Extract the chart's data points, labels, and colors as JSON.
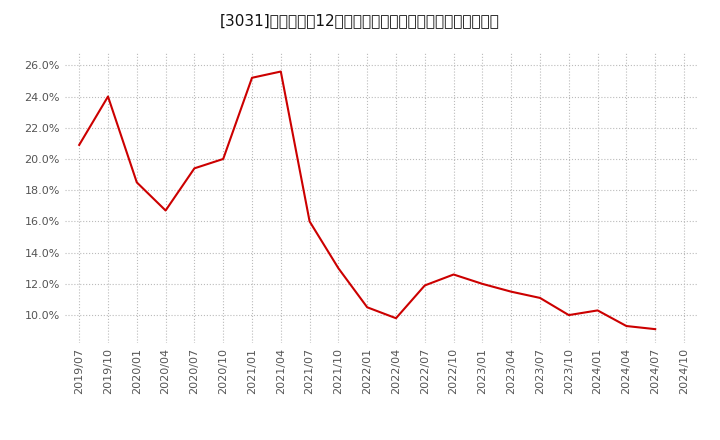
{
  "title": "[3031]　売上高の12か月移動合計の対前年同期増減率の推移",
  "line_color": "#cc0000",
  "background_color": "#ffffff",
  "plot_bg_color": "#ffffff",
  "grid_color": "#bbbbbb",
  "ylim": [
    0.082,
    0.268
  ],
  "yticks": [
    0.1,
    0.12,
    0.14,
    0.16,
    0.18,
    0.2,
    0.22,
    0.24,
    0.26
  ],
  "dates": [
    "2019/07",
    "2019/10",
    "2020/01",
    "2020/04",
    "2020/07",
    "2020/10",
    "2021/01",
    "2021/04",
    "2021/07",
    "2021/10",
    "2022/01",
    "2022/04",
    "2022/07",
    "2022/10",
    "2023/01",
    "2023/04",
    "2023/07",
    "2023/10",
    "2024/01",
    "2024/04",
    "2024/07",
    "2024/10"
  ],
  "values": [
    0.209,
    0.24,
    0.185,
    0.167,
    0.194,
    0.2,
    0.252,
    0.256,
    0.16,
    0.13,
    0.105,
    0.098,
    0.119,
    0.126,
    0.12,
    0.115,
    0.111,
    0.1,
    0.103,
    0.093,
    0.091,
    null
  ],
  "title_fontsize": 11,
  "tick_fontsize": 8,
  "linewidth": 1.5
}
